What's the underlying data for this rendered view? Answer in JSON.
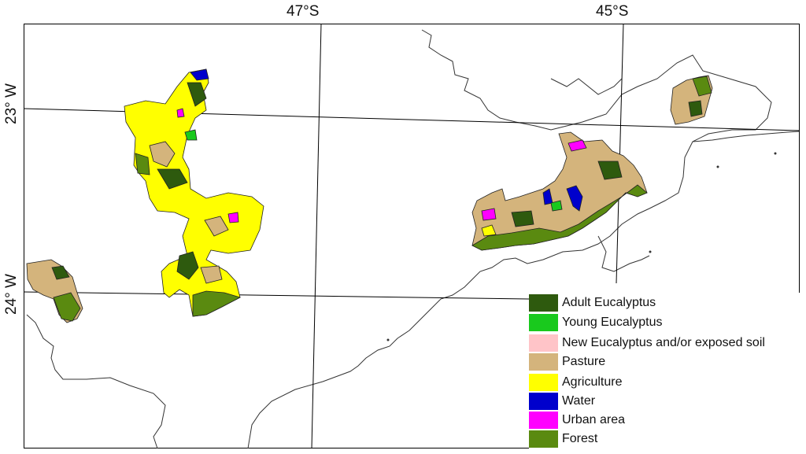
{
  "map": {
    "lat_labels": [
      "47°S",
      "45°S"
    ],
    "lon_labels": [
      "23° W",
      "24° W"
    ]
  },
  "legend": {
    "items": [
      {
        "label": "Adult Eucalyptus",
        "color": "#2e5a0e"
      },
      {
        "label": "Young Eucalyptus",
        "color": "#19c91d"
      },
      {
        "label": "New Eucalyptus and/or exposed soil",
        "color": "#ffc4c8"
      },
      {
        "label": "Pasture",
        "color": "#d4b47c"
      },
      {
        "label": "Agriculture",
        "color": "#ffff00"
      },
      {
        "label": "Water",
        "color": "#0000cc"
      },
      {
        "label": "Urban area",
        "color": "#ff00ff"
      },
      {
        "label": "Forest",
        "color": "#5a8a10"
      }
    ]
  }
}
